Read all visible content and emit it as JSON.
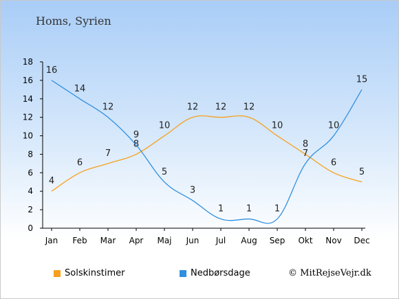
{
  "chart_data": {
    "type": "line",
    "title": "Homs, Syrien",
    "categories": [
      "Jan",
      "Feb",
      "Mar",
      "Apr",
      "Maj",
      "Jun",
      "Jul",
      "Aug",
      "Sep",
      "Okt",
      "Nov",
      "Dec"
    ],
    "ylim": [
      0,
      18
    ],
    "yticks": [
      0,
      2,
      4,
      6,
      8,
      10,
      12,
      14,
      16,
      18
    ],
    "grid": false,
    "legend_position": "bottom",
    "series": [
      {
        "name": "Solskinstimer",
        "color": "#f7a01c",
        "values": [
          4,
          6,
          7,
          8,
          10,
          12,
          12,
          12,
          10,
          8,
          6,
          5
        ]
      },
      {
        "name": "Nedbørsdage",
        "color": "#2f8fe0",
        "values": [
          16,
          14,
          12,
          9,
          5,
          3,
          1,
          1,
          1,
          7,
          10,
          15
        ]
      }
    ]
  },
  "credit": "© MitRejseVejr.dk"
}
